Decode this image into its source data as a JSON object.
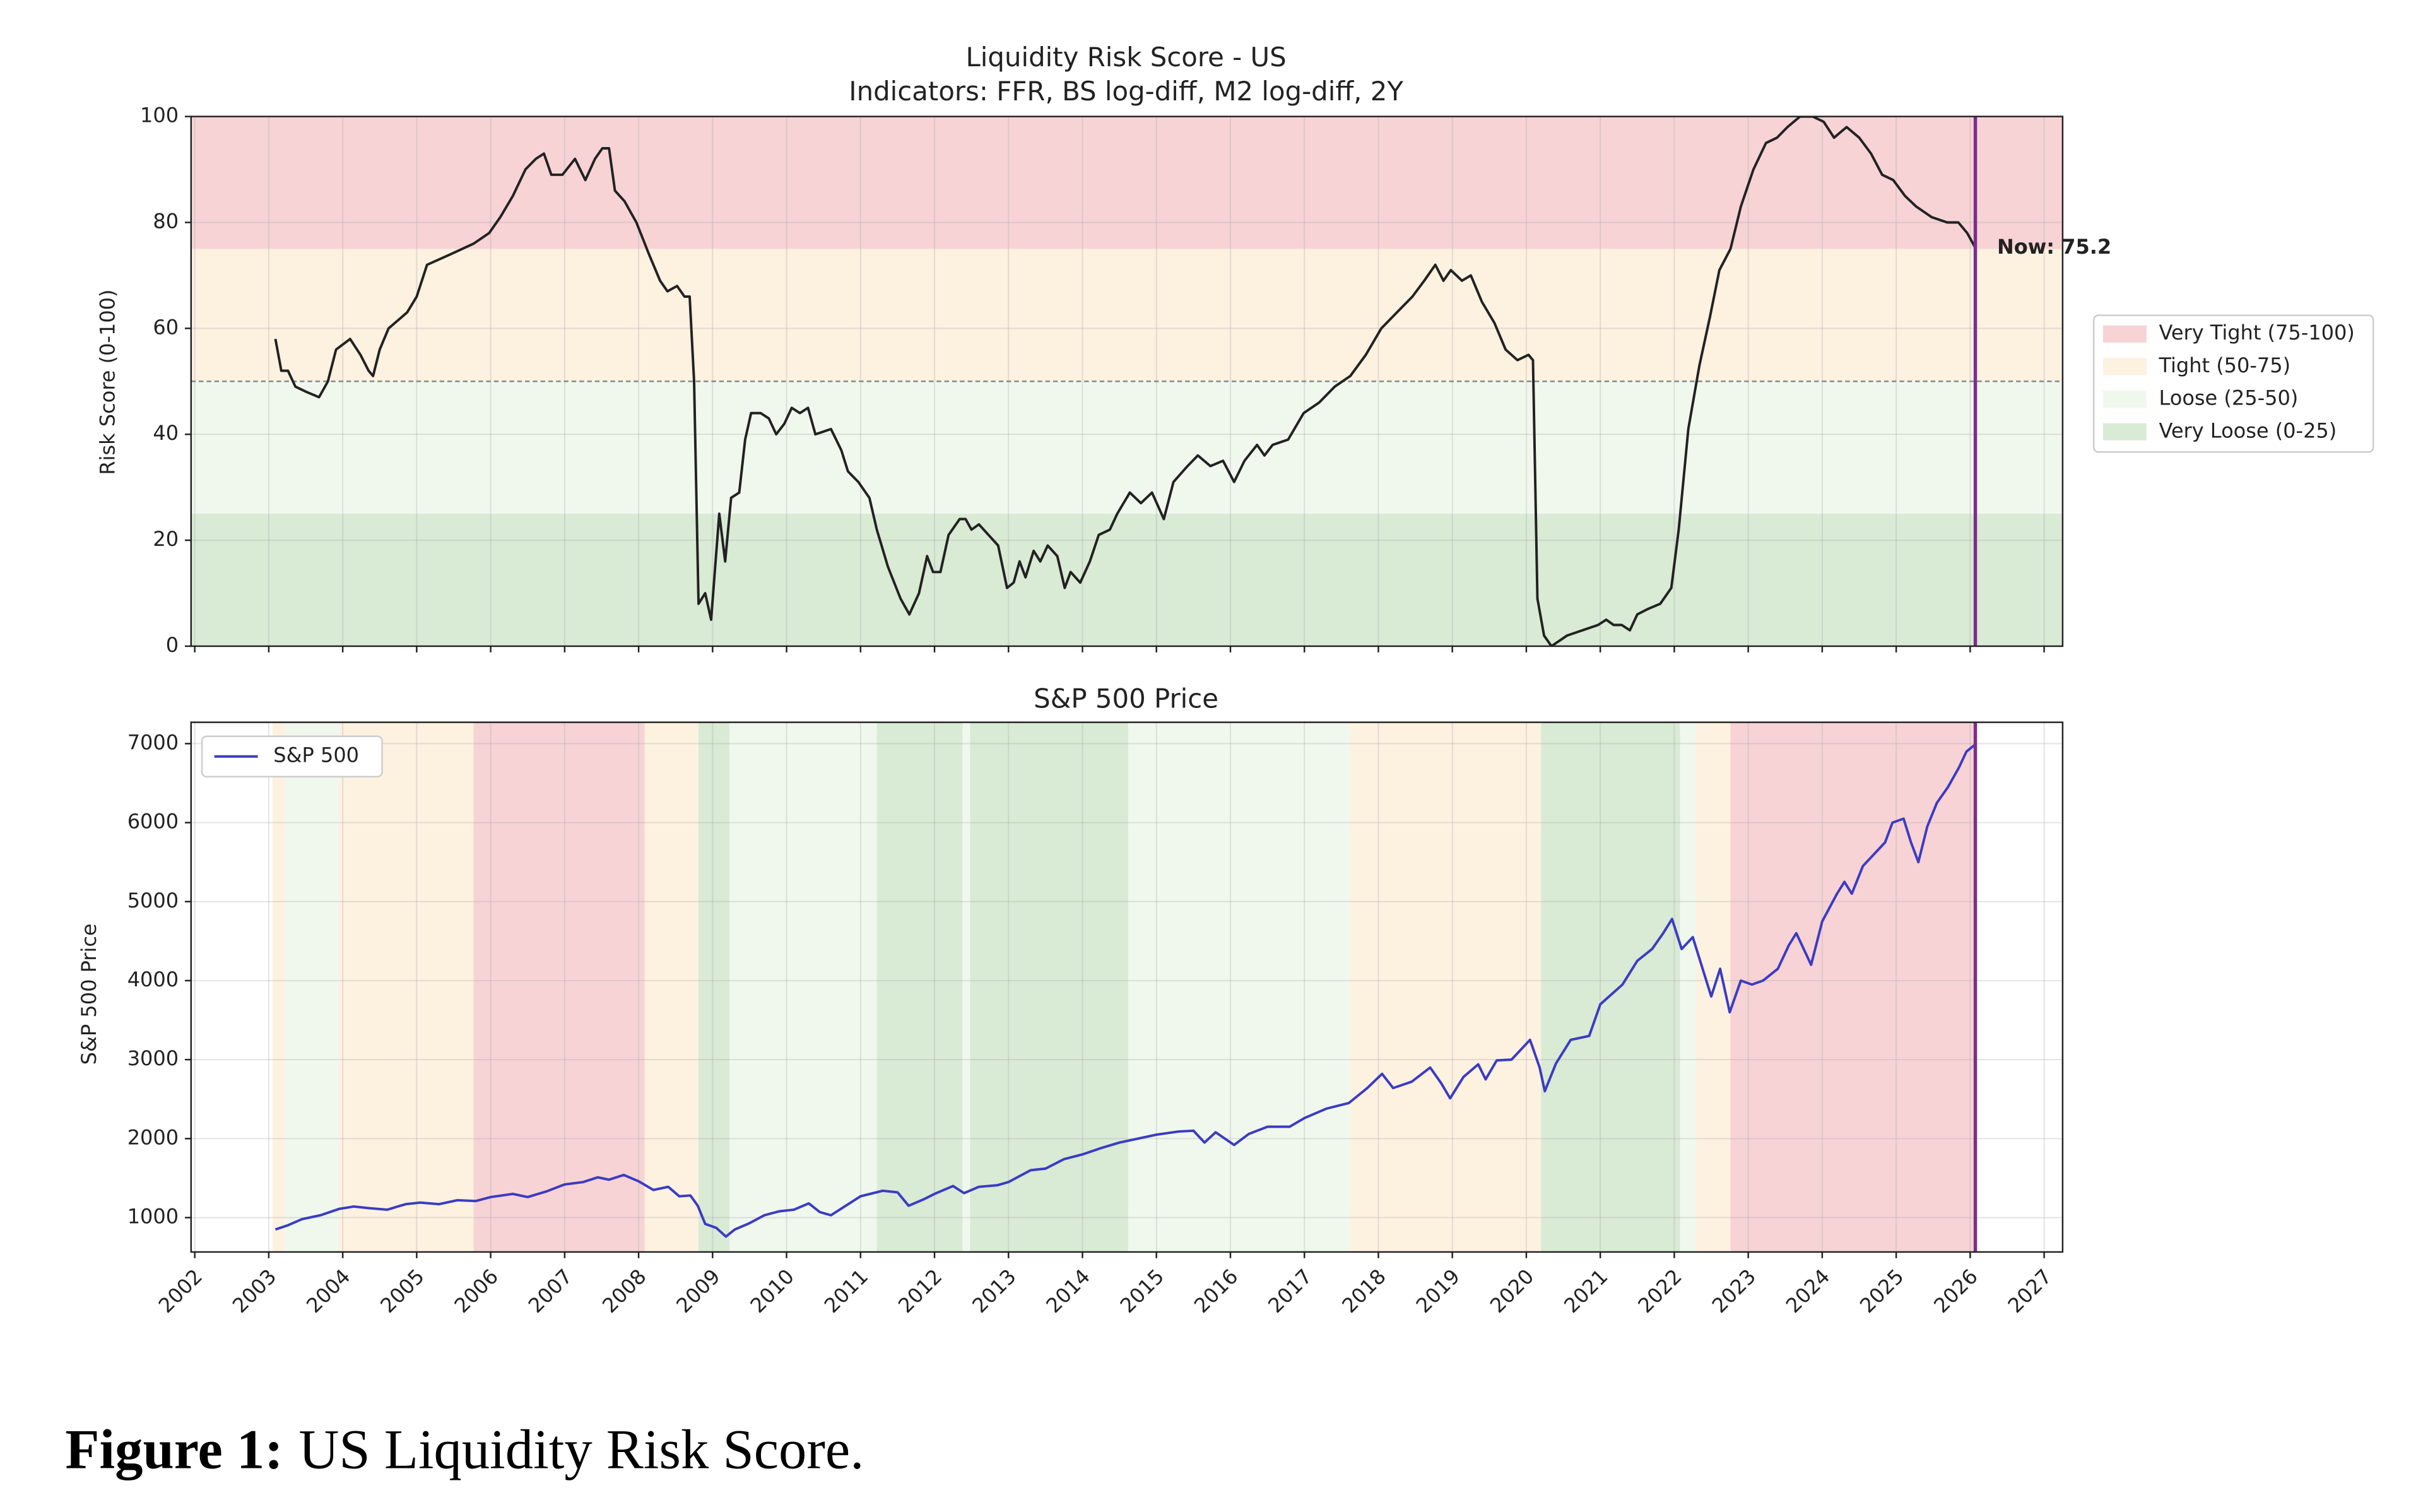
{
  "chart_data": [
    {
      "type": "line",
      "title": "Liquidity Risk Score - US",
      "subtitle": "Indicators: FFR, BS log-diff, M2 log-diff, 2Y",
      "y_label": "Risk Score (0-100)",
      "xlim": [
        2001.95,
        2027.25
      ],
      "xticks": [
        2002,
        2003,
        2004,
        2005,
        2006,
        2007,
        2008,
        2009,
        2010,
        2011,
        2012,
        2013,
        2014,
        2015,
        2016,
        2017,
        2018,
        2019,
        2020,
        2021,
        2022,
        2023,
        2024,
        2025,
        2026,
        2027
      ],
      "show_xtick_labels": false,
      "ylim": [
        0,
        100
      ],
      "yticks": [
        0,
        20,
        40,
        60,
        80,
        100
      ],
      "grid": true,
      "color": "#222222",
      "x": [
        2003.09,
        2003.17,
        2003.26,
        2003.36,
        2003.51,
        2003.68,
        2003.8,
        2003.91,
        2004.1,
        2004.24,
        2004.35,
        2004.41,
        2004.5,
        2004.62,
        2004.87,
        2005.0,
        2005.14,
        2005.46,
        2005.77,
        2005.98,
        2006.13,
        2006.3,
        2006.47,
        2006.61,
        2006.72,
        2006.82,
        2006.97,
        2007.14,
        2007.28,
        2007.41,
        2007.51,
        2007.6,
        2007.68,
        2007.81,
        2007.97,
        2008.14,
        2008.29,
        2008.39,
        2008.52,
        2008.62,
        2008.69,
        2008.75,
        2008.81,
        2008.9,
        2008.98,
        2009.09,
        2009.17,
        2009.25,
        2009.36,
        2009.44,
        2009.52,
        2009.65,
        2009.76,
        2009.86,
        2009.97,
        2010.07,
        2010.18,
        2010.29,
        2010.39,
        2010.6,
        2010.74,
        2010.83,
        2010.97,
        2011.12,
        2011.22,
        2011.37,
        2011.54,
        2011.66,
        2011.79,
        2011.9,
        2011.98,
        2012.08,
        2012.19,
        2012.34,
        2012.42,
        2012.5,
        2012.6,
        2012.73,
        2012.86,
        2012.98,
        2013.07,
        2013.15,
        2013.23,
        2013.34,
        2013.43,
        2013.53,
        2013.66,
        2013.76,
        2013.84,
        2013.97,
        2014.1,
        2014.22,
        2014.37,
        2014.47,
        2014.64,
        2014.79,
        2014.94,
        2015.1,
        2015.23,
        2015.42,
        2015.56,
        2015.73,
        2015.9,
        2016.05,
        2016.19,
        2016.36,
        2016.46,
        2016.57,
        2016.78,
        2016.99,
        2017.2,
        2017.41,
        2017.62,
        2017.83,
        2018.04,
        2018.25,
        2018.46,
        2018.62,
        2018.77,
        2018.88,
        2018.98,
        2019.13,
        2019.25,
        2019.4,
        2019.57,
        2019.72,
        2019.88,
        2020.03,
        2020.09,
        2020.15,
        2020.24,
        2020.34,
        2020.55,
        2020.76,
        2020.97,
        2021.08,
        2021.18,
        2021.29,
        2021.4,
        2021.5,
        2021.64,
        2021.81,
        2021.96,
        2022.06,
        2022.19,
        2022.34,
        2022.48,
        2022.61,
        2022.76,
        2022.9,
        2023.07,
        2023.24,
        2023.39,
        2023.53,
        2023.7,
        2023.87,
        2024.02,
        2024.16,
        2024.33,
        2024.5,
        2024.66,
        2024.81,
        2024.96,
        2025.12,
        2025.27,
        2025.48,
        2025.69,
        2025.84,
        2025.96,
        2026.07
      ],
      "values": [
        58,
        52,
        52,
        49,
        48,
        47,
        50,
        56,
        58,
        55,
        52,
        51,
        56,
        60,
        63,
        66,
        72,
        74,
        76,
        78,
        81,
        85,
        90,
        92,
        93,
        89,
        89,
        92,
        88,
        92,
        94,
        94,
        86,
        84,
        80,
        74,
        69,
        67,
        68,
        66,
        66,
        50,
        8,
        10,
        5,
        25,
        16,
        28,
        29,
        39,
        44,
        44,
        43,
        40,
        42,
        45,
        44,
        45,
        40,
        41,
        37,
        33,
        31,
        28,
        22,
        15,
        9,
        6,
        10,
        17,
        14,
        14,
        21,
        24,
        24,
        22,
        23,
        21,
        19,
        11,
        12,
        16,
        13,
        18,
        16,
        19,
        17,
        11,
        14,
        12,
        16,
        21,
        22,
        25,
        29,
        27,
        29,
        24,
        31,
        34,
        36,
        34,
        35,
        31,
        35,
        38,
        36,
        38,
        39,
        44,
        46,
        49,
        51,
        55,
        60,
        63,
        66,
        69,
        72,
        69,
        71,
        69,
        70,
        65,
        61,
        56,
        54,
        55,
        54,
        9,
        2,
        0,
        2,
        3,
        4,
        5,
        4,
        4,
        3,
        6,
        7,
        8,
        11,
        22,
        41,
        53,
        62,
        71,
        75,
        83,
        90,
        95,
        96,
        98,
        100,
        100,
        99,
        96,
        98,
        96,
        93,
        89,
        88,
        85,
        83,
        81,
        80,
        80,
        78,
        75.2
      ],
      "reference_line": 50,
      "now": {
        "x": 2026.07,
        "value": 75.2,
        "label": "Now: 75.2",
        "color": "#7b2d8e"
      },
      "legend": "outside right",
      "bands": [
        {
          "name": "Very Tight (75-100)",
          "from": 75,
          "to": 100,
          "color": "#f7d3d5"
        },
        {
          "name": "Tight (50-75)",
          "from": 50,
          "to": 75,
          "color": "#fdf1e0"
        },
        {
          "name": "Loose (25-50)",
          "from": 25,
          "to": 50,
          "color": "#f0f8ee"
        },
        {
          "name": "Very Loose (0-25)",
          "from": 0,
          "to": 25,
          "color": "#d9ead5"
        }
      ]
    },
    {
      "type": "line",
      "title": "S&P 500 Price",
      "y_label": "S&P 500 Price",
      "xlim": [
        2001.95,
        2027.25
      ],
      "xticks": [
        2002,
        2003,
        2004,
        2005,
        2006,
        2007,
        2008,
        2009,
        2010,
        2011,
        2012,
        2013,
        2014,
        2015,
        2016,
        2017,
        2018,
        2019,
        2020,
        2021,
        2022,
        2023,
        2024,
        2025,
        2026,
        2027
      ],
      "show_xtick_labels": true,
      "ylim": [
        565,
        7270
      ],
      "yticks": [
        1000,
        2000,
        3000,
        4000,
        5000,
        6000,
        7000
      ],
      "grid": true,
      "legend": "upper left",
      "now_x": 2026.07,
      "now_color": "#7b2d8e",
      "x": [
        2003.09,
        2003.25,
        2003.45,
        2003.7,
        2003.95,
        2004.15,
        2004.35,
        2004.6,
        2004.85,
        2005.05,
        2005.3,
        2005.55,
        2005.8,
        2006.0,
        2006.3,
        2006.5,
        2006.75,
        2007.0,
        2007.25,
        2007.45,
        2007.6,
        2007.8,
        2008.0,
        2008.2,
        2008.4,
        2008.55,
        2008.7,
        2008.8,
        2008.9,
        2009.05,
        2009.18,
        2009.3,
        2009.5,
        2009.7,
        2009.9,
        2010.1,
        2010.3,
        2010.45,
        2010.6,
        2010.8,
        2011.0,
        2011.3,
        2011.5,
        2011.65,
        2011.85,
        2012.0,
        2012.25,
        2012.4,
        2012.6,
        2012.85,
        2013.0,
        2013.3,
        2013.5,
        2013.75,
        2014.0,
        2014.25,
        2014.5,
        2014.8,
        2015.0,
        2015.3,
        2015.5,
        2015.65,
        2015.8,
        2016.05,
        2016.25,
        2016.5,
        2016.8,
        2017.0,
        2017.3,
        2017.6,
        2017.85,
        2018.05,
        2018.2,
        2018.45,
        2018.7,
        2018.85,
        2018.97,
        2019.15,
        2019.35,
        2019.45,
        2019.6,
        2019.8,
        2020.05,
        2020.18,
        2020.25,
        2020.4,
        2020.6,
        2020.85,
        2021.0,
        2021.3,
        2021.5,
        2021.7,
        2021.85,
        2021.97,
        2022.1,
        2022.25,
        2022.4,
        2022.5,
        2022.62,
        2022.75,
        2022.9,
        2023.05,
        2023.2,
        2023.4,
        2023.55,
        2023.65,
        2023.85,
        2024.0,
        2024.2,
        2024.3,
        2024.4,
        2024.55,
        2024.7,
        2024.85,
        2024.95,
        2025.1,
        2025.2,
        2025.3,
        2025.42,
        2025.55,
        2025.7,
        2025.85,
        2025.95,
        2026.07
      ],
      "series": [
        {
          "name": "S&P 500",
          "color": "#3b3bc4",
          "values": [
            850,
            900,
            980,
            1030,
            1110,
            1140,
            1120,
            1100,
            1170,
            1190,
            1170,
            1220,
            1210,
            1260,
            1300,
            1260,
            1330,
            1420,
            1450,
            1510,
            1480,
            1540,
            1460,
            1350,
            1390,
            1270,
            1280,
            1150,
            920,
            870,
            760,
            850,
            930,
            1030,
            1080,
            1100,
            1180,
            1070,
            1030,
            1150,
            1270,
            1340,
            1320,
            1150,
            1230,
            1300,
            1400,
            1310,
            1390,
            1410,
            1450,
            1600,
            1620,
            1740,
            1800,
            1880,
            1950,
            2010,
            2050,
            2090,
            2100,
            1950,
            2080,
            1920,
            2060,
            2150,
            2150,
            2260,
            2380,
            2450,
            2640,
            2820,
            2640,
            2720,
            2900,
            2700,
            2510,
            2780,
            2940,
            2750,
            2990,
            3000,
            3250,
            2900,
            2600,
            2950,
            3250,
            3300,
            3700,
            3950,
            4250,
            4400,
            4600,
            4780,
            4400,
            4550,
            4100,
            3800,
            4150,
            3600,
            4000,
            3950,
            4000,
            4150,
            4450,
            4600,
            4200,
            4750,
            5100,
            5250,
            5100,
            5450,
            5600,
            5750,
            6000,
            6050,
            5750,
            5500,
            5950,
            6250,
            6450,
            6700,
            6900,
            6990
          ]
        }
      ],
      "regions": [
        {
          "from": 2003.05,
          "to": 2003.22,
          "color": "#fdf1e0"
        },
        {
          "from": 2003.22,
          "to": 2003.95,
          "color": "#f0f8ee"
        },
        {
          "from": 2003.95,
          "to": 2005.77,
          "color": "#fdf1e0"
        },
        {
          "from": 2005.77,
          "to": 2008.08,
          "color": "#f7d3d5"
        },
        {
          "from": 2008.08,
          "to": 2008.81,
          "color": "#fdf1e0"
        },
        {
          "from": 2008.81,
          "to": 2009.23,
          "color": "#d9ead5"
        },
        {
          "from": 2009.23,
          "to": 2011.22,
          "color": "#f0f8ee"
        },
        {
          "from": 2011.22,
          "to": 2012.38,
          "color": "#d9ead5"
        },
        {
          "from": 2012.38,
          "to": 2012.48,
          "color": "#f0f8ee"
        },
        {
          "from": 2012.48,
          "to": 2014.62,
          "color": "#d9ead5"
        },
        {
          "from": 2014.62,
          "to": 2017.62,
          "color": "#f0f8ee"
        },
        {
          "from": 2017.62,
          "to": 2020.2,
          "color": "#fdf1e0"
        },
        {
          "from": 2020.2,
          "to": 2022.08,
          "color": "#d9ead5"
        },
        {
          "from": 2022.08,
          "to": 2022.3,
          "color": "#f0f8ee"
        },
        {
          "from": 2022.3,
          "to": 2022.76,
          "color": "#fdf1e0"
        },
        {
          "from": 2022.76,
          "to": 2026.07,
          "color": "#f7d3d5"
        }
      ]
    }
  ],
  "caption": {
    "label": "Figure 1:",
    "text": "US Liquidity Risk Score."
  }
}
